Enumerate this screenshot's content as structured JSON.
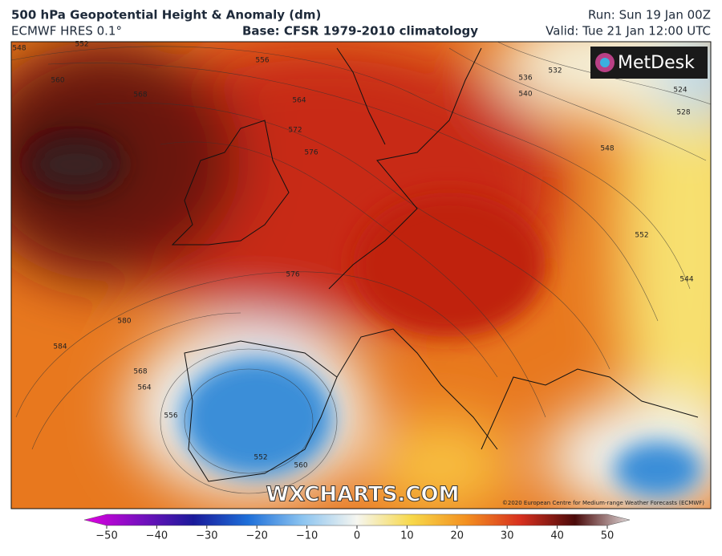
{
  "header": {
    "title": "500 hPa Geopotential Height & Anomaly (dm)",
    "model": "ECMWF HRES 0.1°",
    "base": "Base: CFSR 1979-2010 climatology",
    "run": "Run: Sun 19 Jan 00Z",
    "valid": "Valid: Tue 21 Jan 12:00 UTC"
  },
  "logo": "MetDesk",
  "watermark": "WXCHARTS.COM",
  "copyright": "©2020 European Centre for Medium-range Weather Forecasts (ECMWF)",
  "contour_labels": [
    548,
    552,
    560,
    568,
    556,
    564,
    572,
    576,
    576,
    580,
    584,
    568,
    564,
    556,
    552,
    560,
    536,
    532,
    540,
    548,
    552,
    544,
    524,
    528
  ],
  "colorbar": {
    "lim": [
      -50,
      50
    ],
    "ticks": [
      {
        "value": -50,
        "label": "−50"
      },
      {
        "value": -40,
        "label": "−40"
      },
      {
        "value": -30,
        "label": "−30"
      },
      {
        "value": -20,
        "label": "−20"
      },
      {
        "value": -10,
        "label": "−10"
      },
      0,
      10,
      20,
      30,
      40,
      50
    ]
  }
}
